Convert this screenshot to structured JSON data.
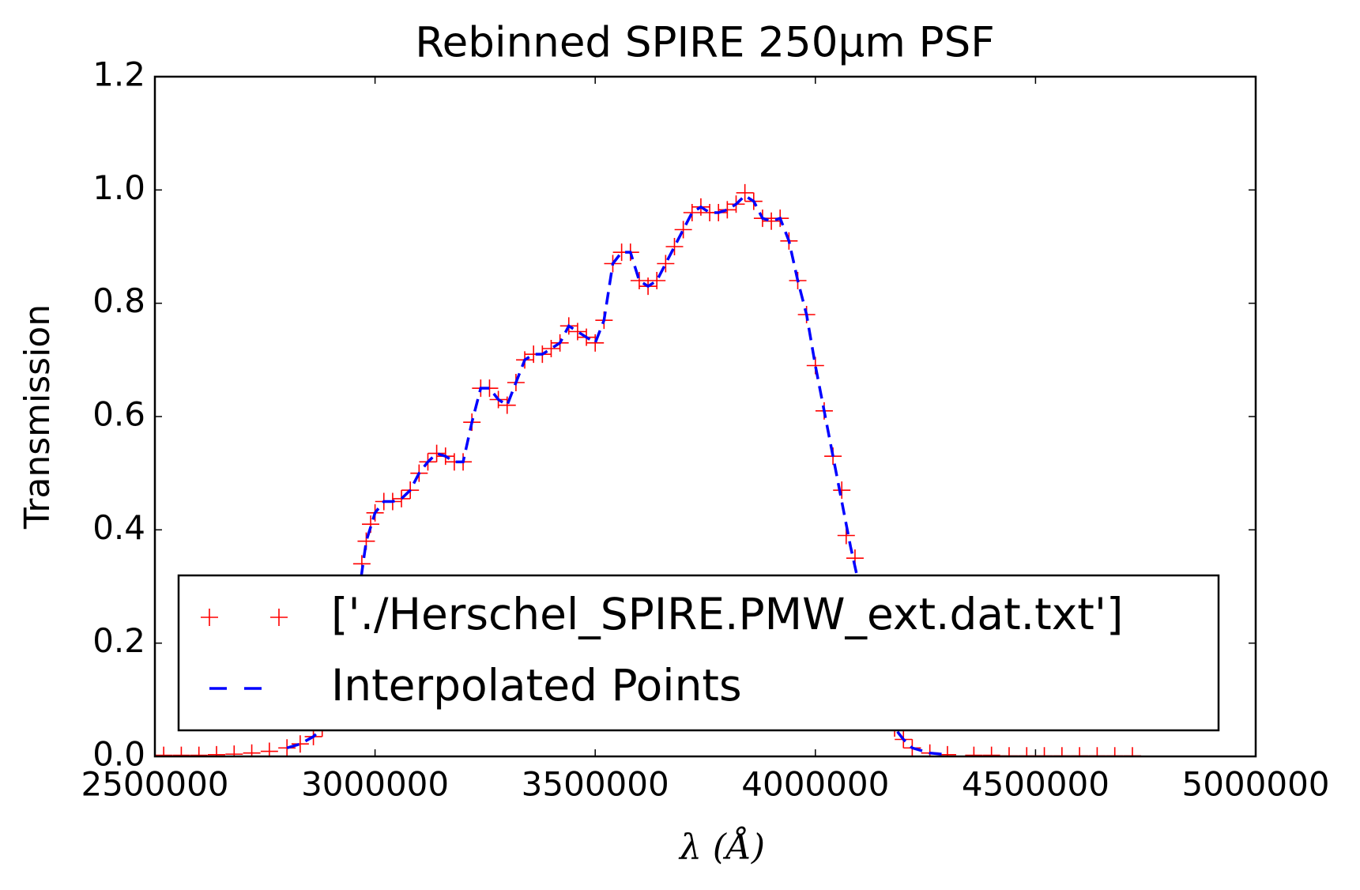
{
  "chart_data": {
    "type": "scatter-line",
    "title": "Rebinned SPIRE 250μm PSF",
    "x_label": "λ (Å)",
    "y_label": "Transmission",
    "xlim": [
      2500000,
      5000000
    ],
    "ylim": [
      0,
      1.2
    ],
    "xticks": [
      2500000,
      3000000,
      3500000,
      4000000,
      4500000,
      5000000
    ],
    "yticks": [
      {
        "value": 0,
        "label": "0.0"
      },
      {
        "value": 0.2,
        "label": "0.2"
      },
      {
        "value": 0.4,
        "label": "0.4"
      },
      {
        "value": 0.6,
        "label": "0.6"
      },
      {
        "value": 0.8,
        "label": "0.8"
      },
      {
        "value": 1.0,
        "label": "1.0"
      },
      {
        "value": 1.2,
        "label": "1.2"
      }
    ],
    "grid": false,
    "legend": "lower center",
    "series": [
      {
        "name": "['./Herschel_SPIRE.PMW_ext.dat.txt']",
        "color": "#ff0000",
        "marker": "+",
        "x": [
          2520000,
          2560000,
          2600000,
          2640000,
          2680000,
          2720000,
          2760000,
          2800000,
          2830000,
          2860000,
          2880000,
          2910000,
          2940000,
          2960000,
          2970000,
          2980000,
          2990000,
          3000000,
          3020000,
          3040000,
          3060000,
          3080000,
          3100000,
          3120000,
          3140000,
          3160000,
          3180000,
          3200000,
          3220000,
          3240000,
          3260000,
          3280000,
          3300000,
          3320000,
          3340000,
          3360000,
          3380000,
          3400000,
          3420000,
          3440000,
          3460000,
          3480000,
          3500000,
          3520000,
          3540000,
          3560000,
          3580000,
          3600000,
          3620000,
          3640000,
          3660000,
          3680000,
          3700000,
          3720000,
          3740000,
          3760000,
          3780000,
          3800000,
          3820000,
          3840000,
          3860000,
          3880000,
          3900000,
          3920000,
          3940000,
          3960000,
          3980000,
          4000000,
          4020000,
          4040000,
          4060000,
          4070000,
          4090000,
          4120000,
          4150000,
          4180000,
          4200000,
          4220000,
          4260000,
          4300000,
          4360000,
          4400000,
          4440000,
          4480000,
          4520000,
          4560000,
          4600000,
          4640000,
          4680000,
          4720000
        ],
        "values": [
          0.002,
          0.002,
          0.002,
          0.003,
          0.004,
          0.006,
          0.009,
          0.015,
          0.022,
          0.035,
          0.05,
          0.1,
          0.18,
          0.27,
          0.34,
          0.38,
          0.41,
          0.43,
          0.45,
          0.45,
          0.455,
          0.47,
          0.5,
          0.52,
          0.535,
          0.53,
          0.52,
          0.52,
          0.59,
          0.65,
          0.65,
          0.63,
          0.62,
          0.66,
          0.7,
          0.71,
          0.71,
          0.72,
          0.73,
          0.76,
          0.75,
          0.74,
          0.73,
          0.77,
          0.87,
          0.89,
          0.89,
          0.84,
          0.83,
          0.84,
          0.87,
          0.9,
          0.93,
          0.96,
          0.97,
          0.96,
          0.96,
          0.965,
          0.975,
          0.995,
          0.98,
          0.95,
          0.945,
          0.95,
          0.91,
          0.84,
          0.78,
          0.69,
          0.61,
          0.53,
          0.47,
          0.39,
          0.35,
          0.2,
          0.1,
          0.05,
          0.03,
          0.015,
          0.006,
          0.003,
          0.002,
          0.002,
          0.001,
          0.001,
          0.001,
          0.001,
          0.001,
          0.001,
          0.001,
          0.001
        ]
      },
      {
        "name": "Interpolated Points",
        "color": "#0000ff",
        "linestyle": "dashed",
        "x": [
          2800000,
          2830000,
          2860000,
          2880000,
          2910000,
          2940000,
          2960000,
          2980000,
          3000000,
          3020000,
          3040000,
          3060000,
          3080000,
          3100000,
          3120000,
          3140000,
          3160000,
          3180000,
          3200000,
          3220000,
          3240000,
          3260000,
          3280000,
          3300000,
          3320000,
          3340000,
          3360000,
          3380000,
          3400000,
          3420000,
          3440000,
          3460000,
          3480000,
          3500000,
          3520000,
          3540000,
          3560000,
          3580000,
          3600000,
          3620000,
          3640000,
          3660000,
          3680000,
          3700000,
          3720000,
          3740000,
          3760000,
          3780000,
          3800000,
          3820000,
          3840000,
          3860000,
          3880000,
          3900000,
          3920000,
          3940000,
          3960000,
          3980000,
          4000000,
          4020000,
          4040000,
          4060000,
          4080000,
          4100000,
          4120000,
          4150000,
          4180000,
          4200000,
          4220000,
          4260000,
          4300000
        ],
        "values": [
          0.015,
          0.022,
          0.035,
          0.05,
          0.1,
          0.18,
          0.27,
          0.38,
          0.43,
          0.45,
          0.45,
          0.455,
          0.47,
          0.5,
          0.52,
          0.535,
          0.53,
          0.52,
          0.52,
          0.59,
          0.65,
          0.65,
          0.63,
          0.62,
          0.66,
          0.7,
          0.71,
          0.71,
          0.72,
          0.73,
          0.76,
          0.75,
          0.74,
          0.73,
          0.77,
          0.87,
          0.89,
          0.89,
          0.84,
          0.83,
          0.84,
          0.87,
          0.9,
          0.93,
          0.96,
          0.97,
          0.96,
          0.96,
          0.965,
          0.975,
          0.99,
          0.98,
          0.95,
          0.945,
          0.95,
          0.91,
          0.84,
          0.78,
          0.69,
          0.61,
          0.53,
          0.45,
          0.37,
          0.3,
          0.2,
          0.1,
          0.05,
          0.03,
          0.015,
          0.006,
          0.003
        ]
      }
    ]
  }
}
